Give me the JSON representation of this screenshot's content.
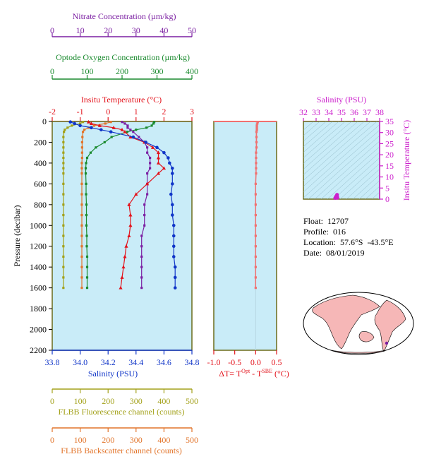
{
  "colors": {
    "nitrate": "#7b1fa2",
    "oxygen": "#1a8a2e",
    "temperature": "#e3121b",
    "salinity": "#1035c8",
    "fluorescence": "#a3a11a",
    "backscatter": "#e2742a",
    "delta": "#f07070",
    "ts": "#cc1fcc",
    "plot_bg": "#c9ecf8",
    "frame": "#6b6b1a"
  },
  "axes": {
    "nitrate": {
      "label": "Nitrate Concentration (µm/kg)",
      "ticks": [
        "0",
        "10",
        "20",
        "30",
        "40",
        "50"
      ]
    },
    "oxygen": {
      "label": "Optode Oxygen Concentration (µm/kg)",
      "ticks": [
        "0",
        "100",
        "200",
        "300",
        "400"
      ]
    },
    "temperature": {
      "label": "Insitu Temperature (°C)",
      "ticks": [
        "-2",
        "-1",
        "0",
        "1",
        "2",
        "3"
      ]
    },
    "pressure": {
      "label": "Pressure (decibar)",
      "ticks": [
        "0",
        "200",
        "400",
        "600",
        "800",
        "1000",
        "1200",
        "1400",
        "1600",
        "1800",
        "2000",
        "2200"
      ]
    },
    "salinity": {
      "label": "Salinity (PSU)",
      "ticks": [
        "33.8",
        "34.0",
        "34.2",
        "34.4",
        "34.6",
        "34.8"
      ]
    },
    "fluorescence": {
      "label": "FLBB Fluorescence channel (counts)",
      "ticks": [
        "0",
        "100",
        "200",
        "300",
        "400",
        "500"
      ]
    },
    "backscatter": {
      "label": "FLBB Backscatter channel (counts)",
      "ticks": [
        "0",
        "100",
        "200",
        "300",
        "400",
        "500"
      ]
    },
    "delta": {
      "label_prefix": "ΔT= T",
      "label_sup1": "Opt",
      "label_mid": " - T",
      "label_sup2": "SBE",
      "label_suffix": " (°C)",
      "ticks": [
        "-1.0",
        "-0.5",
        "0.0",
        "0.5"
      ]
    },
    "ts_salinity": {
      "label": "Salinity (PSU)",
      "ticks": [
        "32",
        "33",
        "34",
        "35",
        "36",
        "37",
        "38"
      ]
    },
    "ts_temperature": {
      "label": "Insitu Temperature (°C)",
      "ticks": [
        "0",
        "5",
        "10",
        "15",
        "20",
        "25",
        "30",
        "35"
      ]
    }
  },
  "info": {
    "float": "Float:  12707",
    "profile": "Profile:  016",
    "location": "Location:  57.6°S  -43.5°E",
    "date": "Date:  08/01/2019"
  },
  "chart_data": [
    {
      "type": "line",
      "name": "profiles",
      "pressure": [
        5,
        20,
        40,
        60,
        80,
        100,
        150,
        200,
        250,
        300,
        350,
        400,
        450,
        500,
        600,
        700,
        800,
        900,
        1000,
        1100,
        1200,
        1300,
        1400,
        1500,
        1600
      ],
      "temperature": [
        -0.7,
        -0.6,
        -0.3,
        0.2,
        0.5,
        0.6,
        0.8,
        1.3,
        1.6,
        1.8,
        1.8,
        1.8,
        2.0,
        1.8,
        1.4,
        1.0,
        0.75,
        0.8,
        0.8,
        0.75,
        0.65,
        0.6,
        0.55,
        0.5,
        0.45
      ],
      "salinity": [
        33.93,
        33.96,
        34.0,
        34.08,
        34.15,
        34.22,
        34.38,
        34.47,
        34.55,
        34.6,
        34.63,
        34.64,
        34.66,
        34.66,
        34.66,
        34.65,
        34.66,
        34.66,
        34.67,
        34.67,
        34.67,
        34.67,
        34.68,
        34.68,
        34.68
      ],
      "oxygen": [
        292,
        290,
        285,
        270,
        240,
        215,
        170,
        150,
        125,
        110,
        100,
        97,
        96,
        96,
        97,
        97,
        98,
        98,
        98,
        99,
        99,
        100,
        100,
        100,
        100
      ],
      "nitrate": [
        25,
        26,
        27,
        27,
        28,
        29,
        31,
        33,
        34,
        34,
        35,
        35,
        35,
        34,
        34,
        34,
        33,
        33,
        33,
        32,
        32,
        32,
        32,
        32,
        32
      ],
      "fluorescence": [
        110,
        100,
        70,
        55,
        45,
        42,
        40,
        40,
        40,
        40,
        40,
        40,
        40,
        40,
        40,
        40,
        40,
        40,
        40,
        40,
        40,
        40,
        40,
        40,
        40
      ],
      "backscatter": [
        210,
        190,
        150,
        130,
        115,
        110,
        108,
        107,
        107,
        107,
        107,
        106,
        106,
        106,
        106,
        106,
        106,
        106,
        106,
        106,
        106,
        106,
        106,
        106,
        106
      ],
      "delta_t": [
        0.05,
        0.04,
        0.03,
        0.03,
        0.03,
        0.02,
        0.02,
        0.02,
        0.02,
        0.01,
        0.01,
        0.01,
        0.01,
        0.01,
        0.0,
        0.0,
        0.0,
        0.0,
        0.0,
        0.0,
        0.0,
        0.0,
        0.0,
        0.0,
        0.0
      ],
      "ylim": [
        2200,
        0
      ],
      "temperature_lim": [
        -2,
        3
      ],
      "salinity_lim": [
        33.8,
        34.8
      ],
      "oxygen_lim": [
        0,
        400
      ],
      "nitrate_lim": [
        0,
        50
      ],
      "fluorescence_lim": [
        0,
        500
      ],
      "backscatter_lim": [
        0,
        500
      ],
      "delta_lim": [
        -1.0,
        0.5
      ]
    },
    {
      "type": "scatter",
      "name": "ts-diagram",
      "salinity": [
        34.5,
        34.55,
        34.6,
        34.65,
        34.66,
        34.68
      ],
      "temperature": [
        0.5,
        1.0,
        1.5,
        2.0,
        1.2,
        0.6
      ],
      "xlim": [
        32,
        38
      ],
      "ylim": [
        0,
        35
      ]
    }
  ]
}
